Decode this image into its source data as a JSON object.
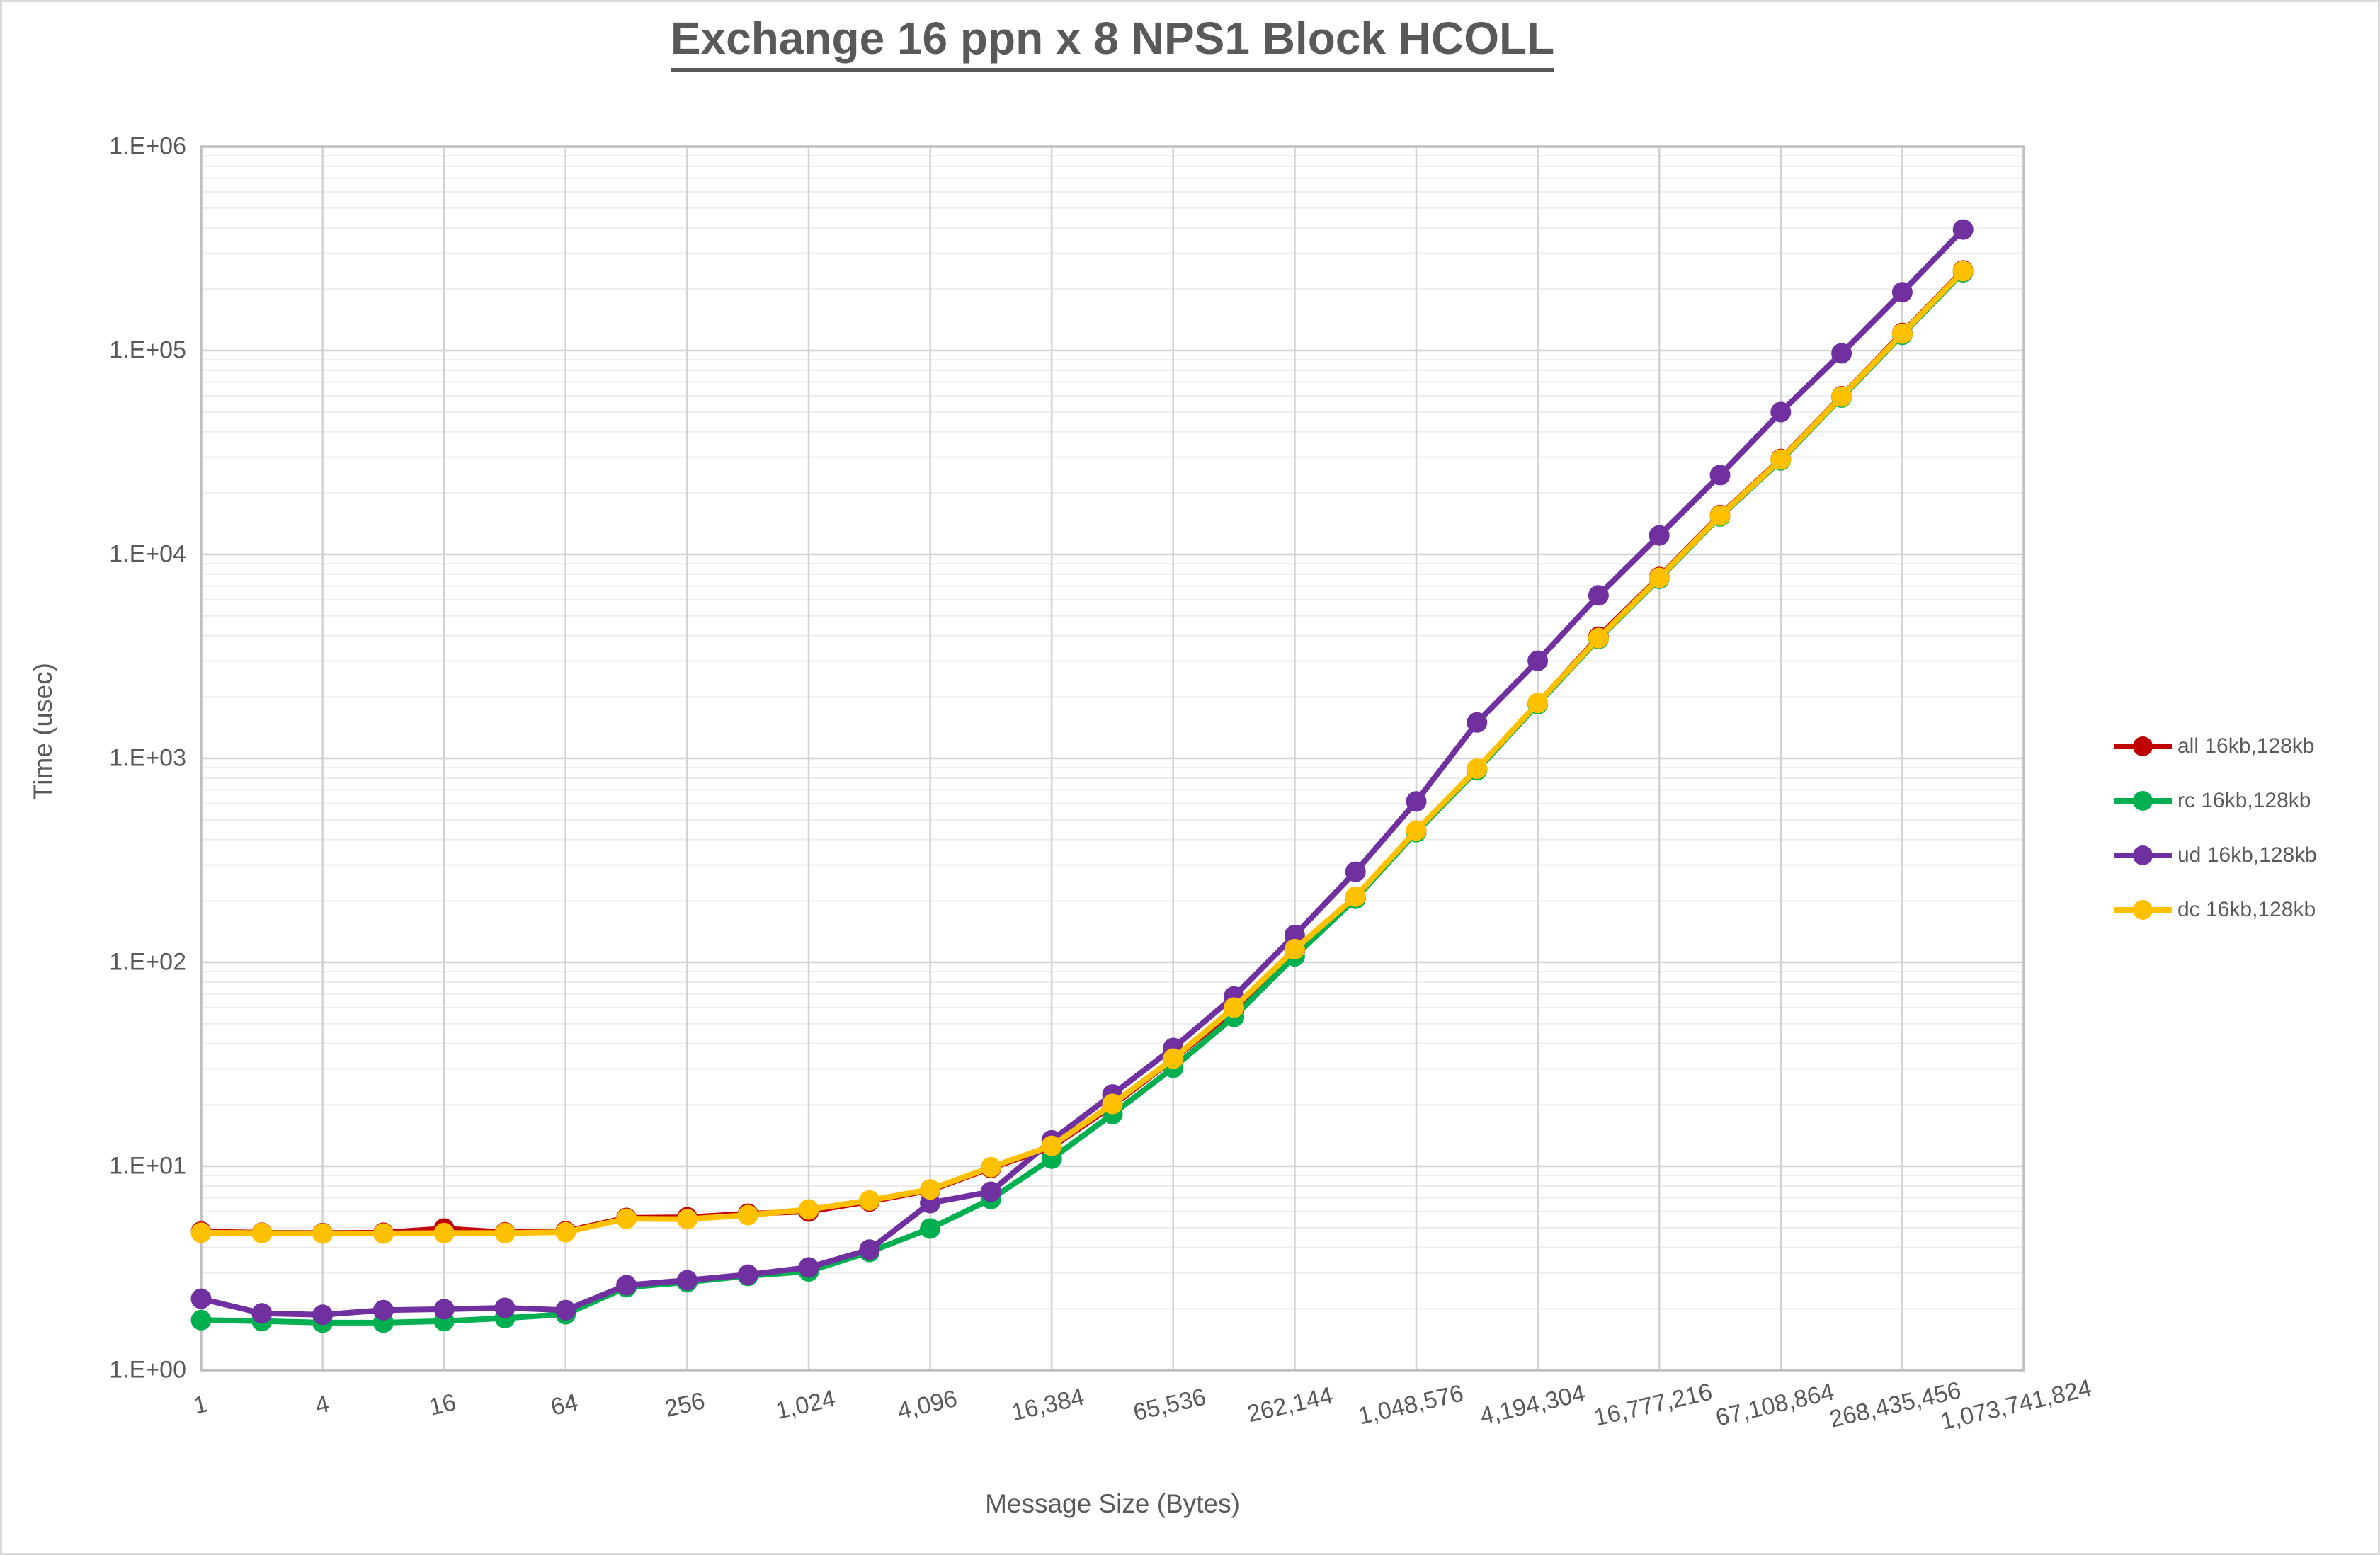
{
  "title": "Exchange 16 ppn x 8 NPS1 Block HCOLL",
  "chart_data": {
    "type": "line",
    "title": "Exchange 16 ppn x 8 NPS1 Block HCOLL",
    "xlabel": "Message Size (Bytes)",
    "ylabel": "Time (usec)",
    "x_scale": "log2 categories (powers of 2)",
    "y_scale": "log10",
    "ylim": [
      1,
      1000000
    ],
    "grid": true,
    "legend_position": "right",
    "y_tick_labels": [
      "1.E+00",
      "1.E+01",
      "1.E+02",
      "1.E+03",
      "1.E+04",
      "1.E+05",
      "1.E+06"
    ],
    "x_tick_labels": [
      "1",
      "4",
      "16",
      "64",
      "256",
      "1,024",
      "4,096",
      "16,384",
      "65,536",
      "262,144",
      "1,048,576",
      "4,194,304",
      "16,777,216",
      "67,108,864",
      "268,435,456",
      "1,073,741,824"
    ],
    "categories": [
      1,
      2,
      4,
      8,
      16,
      32,
      64,
      128,
      256,
      512,
      1024,
      2048,
      4096,
      8192,
      16384,
      32768,
      65536,
      131072,
      262144,
      524288,
      1048576,
      2097152,
      4194304,
      8388608,
      16777216,
      33554432,
      67108864,
      134217728,
      268435456,
      536870912
    ],
    "x_axis_extends_to": 1073741824,
    "series": [
      {
        "name": "all 16kb,128kb",
        "color": "#C00000",
        "values": [
          4.78,
          4.72,
          4.7,
          4.72,
          4.95,
          4.74,
          4.8,
          5.58,
          5.62,
          5.85,
          6.0,
          6.72,
          7.62,
          9.8,
          12.4,
          19.8,
          33.5,
          58.0,
          114,
          207,
          438,
          882,
          1855,
          3950,
          7750,
          15600,
          29400,
          59700,
          122000,
          247000
        ]
      },
      {
        "name": "rc 16kb,128kb",
        "color": "#00B050",
        "values": [
          1.76,
          1.74,
          1.71,
          1.71,
          1.74,
          1.8,
          1.88,
          2.55,
          2.7,
          2.9,
          3.05,
          3.8,
          4.95,
          6.9,
          10.9,
          18.0,
          30.4,
          54.0,
          107,
          205,
          435,
          875,
          1845,
          3850,
          7600,
          15350,
          28900,
          58800,
          119500,
          242000
        ]
      },
      {
        "name": "ud 16kb,128kb",
        "color": "#7030A0",
        "values": [
          2.24,
          1.9,
          1.87,
          1.97,
          1.99,
          2.02,
          1.97,
          2.61,
          2.76,
          2.94,
          3.19,
          3.9,
          6.6,
          7.5,
          13.4,
          22.5,
          38.0,
          68.0,
          136,
          278,
          615,
          1500,
          3010,
          6300,
          12400,
          24500,
          49900,
          96900,
          193000,
          392000
        ]
      },
      {
        "name": "dc 16kb,128kb",
        "color": "#FFC000",
        "values": [
          4.72,
          4.7,
          4.68,
          4.68,
          4.7,
          4.7,
          4.75,
          5.53,
          5.5,
          5.76,
          6.14,
          6.8,
          7.7,
          9.9,
          12.6,
          20.2,
          33.7,
          60.0,
          116,
          210,
          443,
          890,
          1870,
          3890,
          7680,
          15500,
          29200,
          59400,
          121000,
          245000
        ]
      }
    ]
  }
}
